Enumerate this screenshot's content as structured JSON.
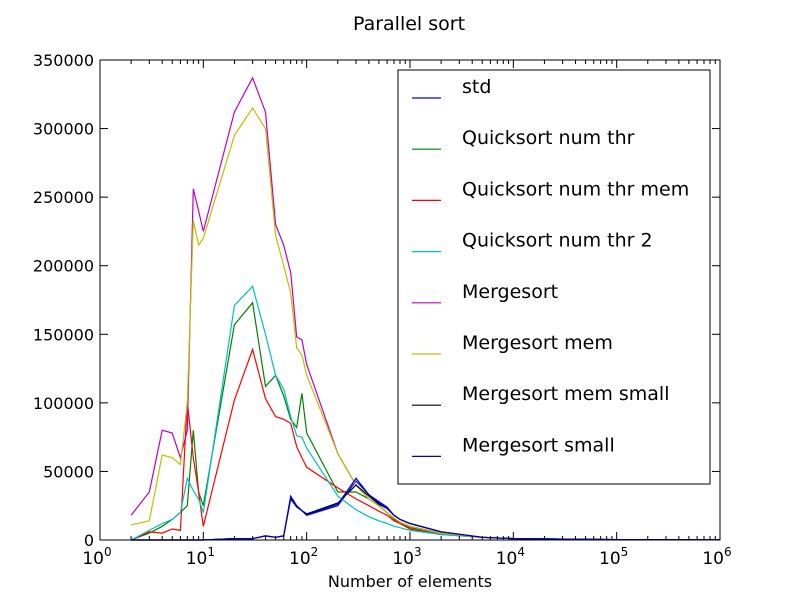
{
  "chart_data": {
    "type": "line",
    "title": "Parallel sort",
    "xlabel": "Number of elements",
    "ylabel": "",
    "xscale": "log",
    "xlim": [
      1,
      1000000
    ],
    "ylim": [
      0,
      350000
    ],
    "x_ticks": [
      {
        "value": 1,
        "base": "10",
        "exp": "0"
      },
      {
        "value": 10,
        "base": "10",
        "exp": "1"
      },
      {
        "value": 100,
        "base": "10",
        "exp": "2"
      },
      {
        "value": 1000,
        "base": "10",
        "exp": "3"
      },
      {
        "value": 10000,
        "base": "10",
        "exp": "4"
      },
      {
        "value": 100000,
        "base": "10",
        "exp": "5"
      },
      {
        "value": 1000000,
        "base": "10",
        "exp": "6"
      }
    ],
    "y_ticks": [
      {
        "value": 0,
        "label": "0"
      },
      {
        "value": 50000,
        "label": "50000"
      },
      {
        "value": 100000,
        "label": "100000"
      },
      {
        "value": 150000,
        "label": "150000"
      },
      {
        "value": 200000,
        "label": "200000"
      },
      {
        "value": 250000,
        "label": "250000"
      },
      {
        "value": 300000,
        "label": "300000"
      },
      {
        "value": 350000,
        "label": "350000"
      }
    ],
    "grid": false,
    "legend": "upper-right",
    "series": [
      {
        "name": "std",
        "color": "#0000ff",
        "x": [
          2,
          10,
          20,
          30,
          40,
          50,
          60,
          70,
          80,
          100,
          200,
          300,
          400,
          500,
          600,
          700,
          800,
          1000,
          2000,
          5000,
          10000,
          100000,
          1000000
        ],
        "y": [
          0,
          0,
          1000,
          1000,
          3000,
          2000,
          3000,
          32000,
          25000,
          18000,
          25000,
          43000,
          33000,
          28000,
          24000,
          18000,
          15000,
          12000,
          6000,
          2000,
          1000,
          300,
          100
        ]
      },
      {
        "name": "Quicksort num thr",
        "color": "#008000",
        "x": [
          2,
          3,
          4,
          5,
          6,
          7,
          8,
          9,
          10,
          20,
          30,
          40,
          50,
          60,
          70,
          80,
          90,
          100,
          200,
          300,
          400,
          500,
          600,
          700,
          800,
          1000,
          2000,
          5000,
          10000,
          100000,
          1000000
        ],
        "y": [
          0,
          5000,
          10000,
          15000,
          20000,
          25000,
          80000,
          35000,
          25000,
          157000,
          173000,
          112000,
          120000,
          105000,
          88000,
          82000,
          107000,
          78000,
          35000,
          35000,
          30000,
          25000,
          20000,
          15000,
          12000,
          9000,
          5000,
          2000,
          1000,
          200,
          100
        ]
      },
      {
        "name": "Quicksort num thr mem",
        "color": "#ff0000",
        "x": [
          2,
          3,
          4,
          5,
          6,
          7,
          8,
          9,
          10,
          20,
          30,
          40,
          50,
          60,
          70,
          80,
          90,
          100,
          200,
          300,
          400,
          500,
          600,
          700,
          800,
          1000,
          2000,
          5000,
          10000,
          100000,
          1000000
        ],
        "y": [
          0,
          6000,
          5000,
          8000,
          7000,
          101000,
          60000,
          35000,
          10000,
          102000,
          139000,
          103000,
          90000,
          88000,
          85000,
          68000,
          60000,
          53000,
          38000,
          30000,
          25000,
          21000,
          18000,
          14000,
          12000,
          8000,
          4000,
          2000,
          1000,
          200,
          100
        ]
      },
      {
        "name": "Quicksort num thr 2",
        "color": "#00bfbf",
        "x": [
          2,
          3,
          4,
          5,
          6,
          7,
          8,
          9,
          10,
          20,
          30,
          40,
          50,
          60,
          70,
          80,
          90,
          100,
          200,
          300,
          400,
          500,
          600,
          700,
          800,
          1000,
          2000,
          5000,
          10000,
          100000,
          1000000
        ],
        "y": [
          0,
          7000,
          12000,
          15000,
          20000,
          45000,
          36000,
          30000,
          20000,
          171000,
          185000,
          150000,
          120000,
          110000,
          90000,
          76000,
          75000,
          67000,
          32000,
          22000,
          17000,
          14000,
          12000,
          10000,
          9000,
          7000,
          4000,
          2000,
          1000,
          200,
          100
        ]
      },
      {
        "name": "Mergesort",
        "color": "#bf00bf",
        "x": [
          2,
          3,
          4,
          5,
          6,
          7,
          8,
          9,
          10,
          20,
          30,
          40,
          50,
          60,
          70,
          80,
          90,
          100,
          200,
          300,
          400,
          500,
          600,
          700,
          800,
          1000,
          2000,
          5000,
          10000,
          100000,
          1000000
        ],
        "y": [
          18000,
          35000,
          80000,
          78000,
          60000,
          80000,
          256000,
          240000,
          225000,
          312000,
          337000,
          312000,
          230000,
          215000,
          195000,
          148000,
          146000,
          128000,
          63000,
          40000,
          30000,
          25000,
          20000,
          16000,
          13000,
          10000,
          5000,
          2000,
          1000,
          200,
          100
        ]
      },
      {
        "name": "Mergesort mem",
        "color": "#bfbf00",
        "x": [
          2,
          3,
          4,
          5,
          6,
          7,
          8,
          9,
          10,
          20,
          30,
          40,
          50,
          60,
          70,
          80,
          90,
          100,
          200,
          300,
          400,
          500,
          600,
          700,
          800,
          1000,
          2000,
          5000,
          10000,
          100000,
          1000000
        ],
        "y": [
          11000,
          14000,
          62000,
          60000,
          55000,
          100000,
          233000,
          215000,
          220000,
          295000,
          315000,
          300000,
          222000,
          200000,
          180000,
          140000,
          135000,
          120000,
          63000,
          40000,
          30000,
          25000,
          20000,
          16000,
          13000,
          10000,
          5000,
          2000,
          1000,
          200,
          100
        ]
      },
      {
        "name": "Mergesort mem small",
        "color": "#000000",
        "x": [
          2,
          10,
          20,
          30,
          40,
          50,
          60,
          70,
          80,
          100,
          200,
          300,
          400,
          500,
          600,
          700,
          800,
          1000,
          2000,
          5000,
          10000,
          100000,
          1000000
        ],
        "y": [
          0,
          0,
          1000,
          1000,
          3000,
          2000,
          3000,
          30000,
          24000,
          19000,
          27000,
          40000,
          32000,
          26000,
          23000,
          18000,
          15000,
          12000,
          6000,
          2000,
          1000,
          300,
          100
        ]
      },
      {
        "name": "Mergesort small",
        "color": "#0000bf",
        "x": [
          2,
          10,
          20,
          30,
          40,
          50,
          60,
          70,
          80,
          100,
          200,
          300,
          400,
          500,
          600,
          700,
          800,
          1000,
          2000,
          5000,
          10000,
          100000,
          1000000
        ],
        "y": [
          0,
          0,
          1000,
          1000,
          3000,
          2000,
          3000,
          31000,
          24500,
          18500,
          26000,
          45000,
          33000,
          27000,
          23000,
          18000,
          15000,
          12000,
          6000,
          2000,
          1000,
          300,
          100
        ]
      }
    ]
  }
}
